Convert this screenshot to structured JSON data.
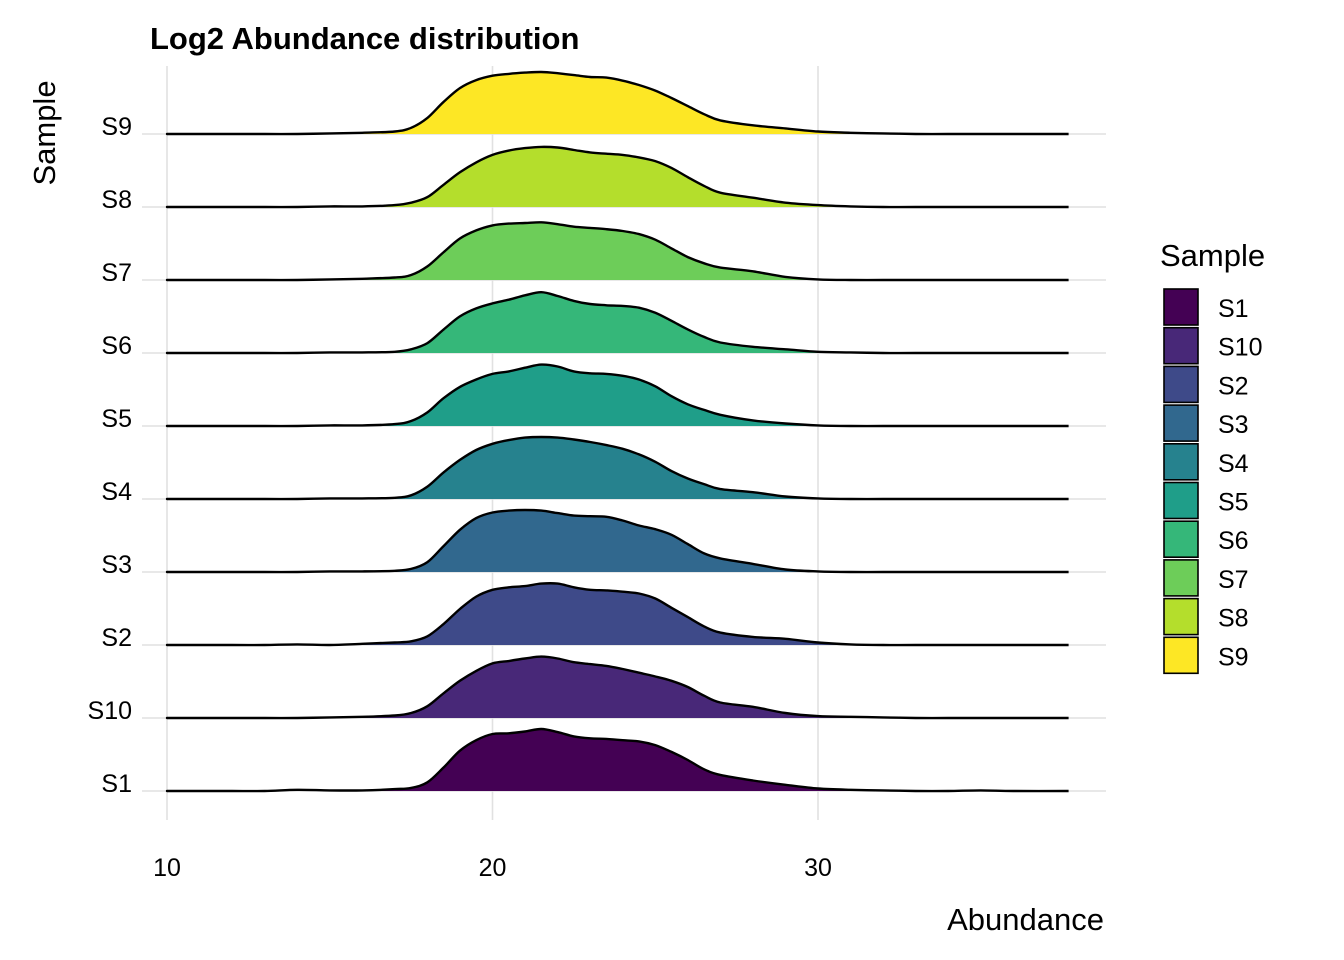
{
  "chart_data": {
    "type": "ridgeline",
    "title": "Log2 Abundance distribution",
    "xlabel": "Abundance",
    "ylabel": "Sample",
    "xlim": [
      8.3,
      36.5
    ],
    "x_ticks": [
      10,
      20,
      30
    ],
    "grid": true,
    "legend": {
      "title": "Sample",
      "position": "right",
      "entries": [
        {
          "label": "S1",
          "color": "#440154"
        },
        {
          "label": "S10",
          "color": "#482878"
        },
        {
          "label": "S2",
          "color": "#3E4A89"
        },
        {
          "label": "S3",
          "color": "#31688E"
        },
        {
          "label": "S4",
          "color": "#26828E"
        },
        {
          "label": "S5",
          "color": "#1F9E89"
        },
        {
          "label": "S6",
          "color": "#35B779"
        },
        {
          "label": "S7",
          "color": "#6DCD59"
        },
        {
          "label": "S8",
          "color": "#B4DE2C"
        },
        {
          "label": "S9",
          "color": "#FDE725"
        }
      ]
    },
    "x_grid": [
      10,
      11,
      12,
      13,
      14,
      15,
      16,
      17,
      17.5,
      18,
      18.5,
      19,
      19.5,
      20,
      20.5,
      21,
      21.5,
      22,
      22.5,
      23,
      23.5,
      24,
      24.5,
      25,
      25.5,
      26,
      26.5,
      27,
      28,
      29,
      30,
      31,
      32,
      33,
      34,
      35,
      36
    ],
    "series": [
      {
        "name": "S1",
        "color": "#440154",
        "density": [
          0,
          0,
          0,
          0,
          0.02,
          0.01,
          0.01,
          0.03,
          0.05,
          0.14,
          0.38,
          0.65,
          0.82,
          0.92,
          0.93,
          0.96,
          1.0,
          0.95,
          0.88,
          0.85,
          0.84,
          0.82,
          0.8,
          0.74,
          0.63,
          0.5,
          0.35,
          0.26,
          0.17,
          0.1,
          0.04,
          0.02,
          0.01,
          0,
          0,
          0.01,
          0
        ]
      },
      {
        "name": "S10",
        "color": "#482878",
        "density": [
          0,
          0,
          0,
          0,
          0,
          0.01,
          0.02,
          0.04,
          0.08,
          0.19,
          0.4,
          0.6,
          0.76,
          0.88,
          0.92,
          0.96,
          0.99,
          0.96,
          0.9,
          0.87,
          0.84,
          0.79,
          0.73,
          0.67,
          0.6,
          0.5,
          0.36,
          0.25,
          0.18,
          0.08,
          0.03,
          0.02,
          0.01,
          0,
          0,
          0,
          0
        ]
      },
      {
        "name": "S2",
        "color": "#3E4A89",
        "density": [
          0,
          0,
          0,
          0,
          0.01,
          0,
          0.02,
          0.04,
          0.06,
          0.14,
          0.34,
          0.58,
          0.78,
          0.89,
          0.93,
          0.95,
          0.99,
          0.99,
          0.93,
          0.89,
          0.88,
          0.86,
          0.83,
          0.75,
          0.6,
          0.45,
          0.3,
          0.2,
          0.13,
          0.1,
          0.04,
          0.01,
          0,
          0,
          0,
          0,
          0
        ]
      },
      {
        "name": "S3",
        "color": "#31688E",
        "density": [
          0,
          0,
          0,
          0,
          0,
          0.01,
          0.01,
          0.02,
          0.05,
          0.16,
          0.42,
          0.68,
          0.87,
          0.96,
          0.99,
          1.0,
          0.99,
          0.95,
          0.91,
          0.9,
          0.89,
          0.83,
          0.75,
          0.69,
          0.6,
          0.45,
          0.3,
          0.22,
          0.13,
          0.04,
          0.01,
          0,
          0,
          0,
          0,
          0,
          0
        ]
      },
      {
        "name": "S4",
        "color": "#26828E",
        "density": [
          0,
          0,
          0,
          0,
          0,
          0.01,
          0.01,
          0.02,
          0.06,
          0.2,
          0.43,
          0.63,
          0.79,
          0.89,
          0.95,
          0.99,
          1.0,
          0.99,
          0.96,
          0.92,
          0.87,
          0.81,
          0.72,
          0.6,
          0.45,
          0.33,
          0.24,
          0.16,
          0.11,
          0.04,
          0.01,
          0,
          0,
          0,
          0,
          0,
          0
        ]
      },
      {
        "name": "S5",
        "color": "#1F9E89",
        "density": [
          0,
          0,
          0,
          0,
          0,
          0.01,
          0.01,
          0.03,
          0.08,
          0.22,
          0.45,
          0.63,
          0.75,
          0.84,
          0.88,
          0.94,
          0.99,
          0.96,
          0.88,
          0.85,
          0.84,
          0.81,
          0.75,
          0.64,
          0.48,
          0.35,
          0.26,
          0.18,
          0.09,
          0.04,
          0.01,
          0,
          0,
          0,
          0,
          0,
          0
        ]
      },
      {
        "name": "S6",
        "color": "#35B779",
        "density": [
          0,
          0,
          0,
          0,
          0,
          0.01,
          0.01,
          0.02,
          0.06,
          0.16,
          0.38,
          0.59,
          0.72,
          0.8,
          0.86,
          0.93,
          0.98,
          0.92,
          0.84,
          0.79,
          0.77,
          0.76,
          0.73,
          0.65,
          0.52,
          0.38,
          0.26,
          0.17,
          0.1,
          0.06,
          0.02,
          0.01,
          0,
          0,
          0,
          0,
          0
        ]
      },
      {
        "name": "S7",
        "color": "#6DCD59",
        "density": [
          0,
          0,
          0,
          0,
          0,
          0.01,
          0.02,
          0.04,
          0.08,
          0.22,
          0.45,
          0.67,
          0.8,
          0.88,
          0.91,
          0.92,
          0.93,
          0.9,
          0.86,
          0.84,
          0.82,
          0.79,
          0.74,
          0.65,
          0.51,
          0.37,
          0.27,
          0.2,
          0.14,
          0.05,
          0.01,
          0,
          0,
          0,
          0,
          0,
          0
        ]
      },
      {
        "name": "S8",
        "color": "#B4DE2C",
        "density": [
          0,
          0,
          0,
          0,
          0,
          0.01,
          0.01,
          0.03,
          0.07,
          0.16,
          0.36,
          0.56,
          0.72,
          0.84,
          0.91,
          0.95,
          0.97,
          0.96,
          0.92,
          0.88,
          0.86,
          0.84,
          0.8,
          0.74,
          0.63,
          0.48,
          0.34,
          0.23,
          0.15,
          0.07,
          0.03,
          0.01,
          0,
          0,
          0,
          0,
          0
        ]
      },
      {
        "name": "S9",
        "color": "#FDE725",
        "density": [
          0,
          0,
          0,
          0,
          0,
          0.01,
          0.02,
          0.04,
          0.1,
          0.26,
          0.52,
          0.74,
          0.87,
          0.94,
          0.97,
          0.99,
          1.0,
          0.98,
          0.95,
          0.92,
          0.91,
          0.86,
          0.79,
          0.7,
          0.58,
          0.45,
          0.32,
          0.22,
          0.14,
          0.09,
          0.04,
          0.02,
          0.01,
          0,
          0,
          0,
          0
        ]
      }
    ]
  }
}
